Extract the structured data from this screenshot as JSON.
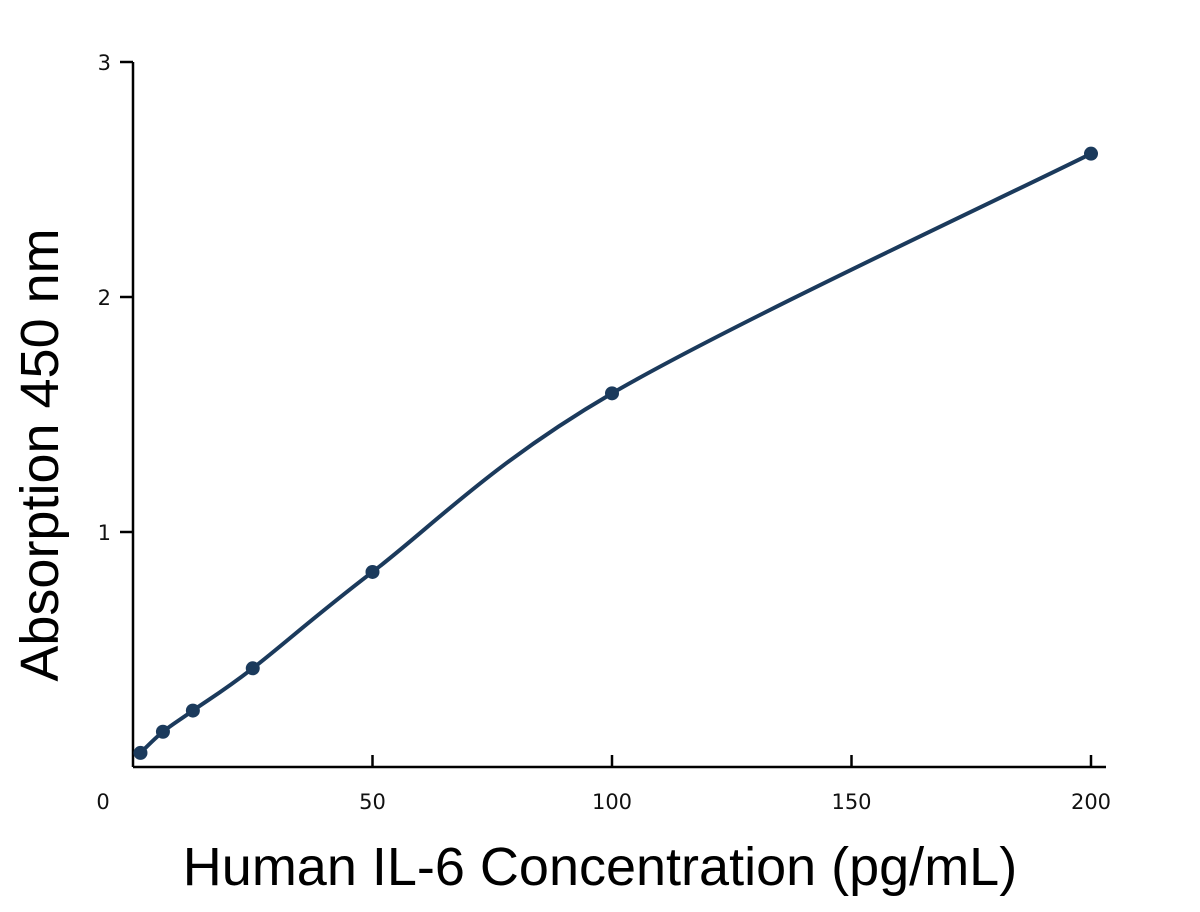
{
  "chart_data": {
    "type": "line",
    "title": "",
    "xlabel": "Human IL-6 Concentration (pg/mL)",
    "ylabel": "Absorption 450 nm",
    "xlim": [
      0,
      200
    ],
    "ylim": [
      0,
      3
    ],
    "x_ticks": [
      "0",
      "50",
      "100",
      "150",
      "200"
    ],
    "y_ticks": [
      "1",
      "2",
      "3"
    ],
    "grid": false,
    "legend": "none",
    "series": [
      {
        "x": [
          1.56,
          6.25,
          12.5,
          25,
          50,
          100,
          200
        ],
        "y": [
          0.06,
          0.15,
          0.24,
          0.42,
          0.83,
          1.59,
          2.61
        ],
        "color": "#1b3a5c"
      }
    ]
  }
}
